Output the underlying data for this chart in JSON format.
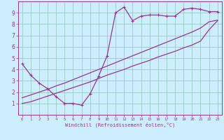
{
  "title": "",
  "xlabel": "Windchill (Refroidissement éolien,°C)",
  "bg_color": "#cceeff",
  "grid_color": "#99ccbb",
  "line_color": "#993399",
  "spine_color": "#993399",
  "xlim": [
    -0.5,
    23.5
  ],
  "ylim": [
    0,
    10
  ],
  "xticks": [
    0,
    1,
    2,
    3,
    4,
    5,
    6,
    7,
    8,
    9,
    10,
    11,
    12,
    13,
    14,
    15,
    16,
    17,
    18,
    19,
    20,
    21,
    22,
    23
  ],
  "yticks": [
    1,
    2,
    3,
    4,
    5,
    6,
    7,
    8,
    9
  ],
  "line1_x": [
    0,
    1,
    2,
    3,
    4,
    5,
    6,
    7,
    8,
    9,
    10,
    11,
    12,
    13,
    14,
    15,
    16,
    17,
    18,
    19,
    20,
    21,
    22,
    23
  ],
  "line1_y": [
    4.5,
    3.5,
    2.8,
    2.3,
    1.6,
    1.0,
    1.0,
    0.85,
    1.85,
    3.4,
    5.2,
    9.0,
    9.5,
    8.3,
    8.7,
    8.8,
    8.8,
    8.7,
    8.7,
    9.3,
    9.4,
    9.3,
    9.1,
    9.1
  ],
  "line2_x": [
    0,
    1,
    2,
    3,
    4,
    5,
    6,
    7,
    8,
    9,
    10,
    11,
    12,
    13,
    14,
    15,
    16,
    17,
    18,
    19,
    20,
    21,
    22,
    23
  ],
  "line2_y": [
    1.0,
    1.15,
    1.4,
    1.65,
    1.9,
    2.15,
    2.4,
    2.65,
    2.9,
    3.2,
    3.5,
    3.75,
    4.0,
    4.3,
    4.55,
    4.8,
    5.1,
    5.35,
    5.6,
    5.9,
    6.15,
    6.5,
    7.5,
    8.3
  ],
  "line3_x": [
    0,
    1,
    2,
    3,
    4,
    5,
    6,
    7,
    8,
    9,
    10,
    11,
    12,
    13,
    14,
    15,
    16,
    17,
    18,
    19,
    20,
    21,
    22,
    23
  ],
  "line3_y": [
    1.5,
    1.75,
    2.0,
    2.25,
    2.55,
    2.8,
    3.1,
    3.4,
    3.7,
    4.0,
    4.3,
    4.6,
    4.9,
    5.2,
    5.5,
    5.8,
    6.1,
    6.4,
    6.7,
    7.0,
    7.3,
    7.65,
    8.2,
    8.35
  ]
}
